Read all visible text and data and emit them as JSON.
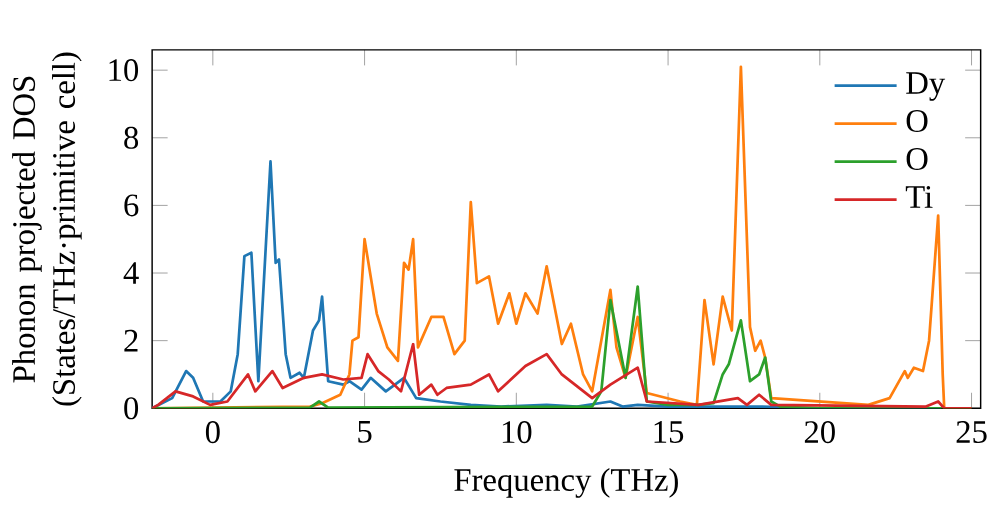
{
  "chart_data": {
    "type": "line",
    "xlabel": "Frequency (THz)",
    "ylabel": "Phonon projected DOS (States/THz·primitive cell)",
    "xlim": [
      -2,
      25.3
    ],
    "ylim": [
      0,
      10.6
    ],
    "xticks": [
      0,
      5,
      10,
      15,
      20,
      25
    ],
    "yticks": [
      0,
      2,
      4,
      6,
      8,
      10
    ],
    "legend": "top right",
    "grid": false,
    "marker": "none",
    "line_style": "solid",
    "series": [
      {
        "name": "Dy",
        "color": "#1f77b4",
        "x": [
          -2,
          -1.34,
          -0.88,
          -0.65,
          -0.32,
          0.25,
          0.59,
          0.82,
          1.04,
          1.27,
          1.5,
          1.9,
          2.07,
          2.18,
          2.4,
          2.56,
          2.86,
          3.0,
          3.3,
          3.5,
          3.6,
          3.8,
          4.3,
          4.5,
          4.9,
          5.2,
          5.7,
          6.3,
          6.7,
          7.5,
          8.5,
          9.5,
          11,
          12,
          13.1,
          13.5,
          14,
          15,
          17,
          18,
          20,
          24
        ],
        "values": [
          0,
          0.3,
          1.1,
          0.9,
          0.2,
          0.2,
          0.5,
          1.6,
          4.5,
          4.6,
          0.8,
          7.3,
          4.3,
          4.4,
          1.6,
          0.9,
          1.05,
          0.9,
          2.3,
          2.6,
          3.3,
          0.8,
          0.7,
          0.8,
          0.55,
          0.9,
          0.5,
          0.9,
          0.3,
          0.2,
          0.1,
          0.05,
          0.1,
          0.05,
          0.2,
          0.05,
          0.1,
          0.05,
          0.05,
          0.05,
          0,
          0
        ]
      },
      {
        "name": "O",
        "color": "#ff7f0e",
        "x": [
          -2,
          3.2,
          3.6,
          4.2,
          4.5,
          4.6,
          4.8,
          5.0,
          5.4,
          5.75,
          6.1,
          6.3,
          6.45,
          6.6,
          6.76,
          7.2,
          7.6,
          7.96,
          8.3,
          8.5,
          8.7,
          9.1,
          9.4,
          9.77,
          10.0,
          10.3,
          10.7,
          11.0,
          11.5,
          11.8,
          12.2,
          12.5,
          13.1,
          13.3,
          13.6,
          14.0,
          14.3,
          15.4,
          15.95,
          16.2,
          16.5,
          16.8,
          17.1,
          17.4,
          17.7,
          17.87,
          18.05,
          18.2,
          18.4,
          21.6,
          22.3,
          22.8,
          22.9,
          23.1,
          23.4,
          23.6,
          23.9,
          24.05,
          24.1,
          25
        ],
        "values": [
          0,
          0.05,
          0.15,
          0.4,
          1.0,
          2.0,
          2.1,
          5.0,
          2.8,
          1.8,
          1.4,
          4.3,
          4.1,
          5.0,
          1.8,
          2.7,
          2.7,
          1.6,
          2.0,
          6.1,
          3.7,
          3.9,
          2.5,
          3.4,
          2.5,
          3.4,
          2.8,
          4.2,
          1.9,
          2.5,
          1.0,
          0.5,
          3.5,
          1.8,
          0.9,
          2.7,
          0.45,
          0.2,
          0.1,
          3.2,
          1.3,
          3.3,
          2.3,
          10.1,
          2.4,
          1.7,
          2.0,
          1.5,
          0.3,
          0.1,
          0.3,
          1.1,
          0.9,
          1.2,
          1.1,
          2.0,
          5.7,
          1.0,
          0,
          0
        ]
      },
      {
        "name": "O",
        "color": "#2ca02c",
        "x": [
          -2,
          3.2,
          3.5,
          3.8,
          12.5,
          12.8,
          13.1,
          13.6,
          14.0,
          14.3,
          15,
          16,
          16.5,
          16.8,
          17.0,
          17.4,
          17.7,
          18.0,
          18.2,
          18.4,
          18.7,
          20,
          25
        ],
        "values": [
          0,
          0.02,
          0.2,
          0.02,
          0.05,
          0.5,
          3.2,
          0.9,
          3.6,
          0.2,
          0.1,
          0.1,
          0.15,
          1.0,
          1.3,
          2.6,
          0.8,
          1.0,
          1.5,
          0.2,
          0.05,
          0,
          0
        ]
      },
      {
        "name": "Ti",
        "color": "#d62728",
        "x": [
          -2,
          -1.8,
          -1.23,
          -0.65,
          -0.09,
          0.48,
          0.82,
          1.16,
          1.4,
          1.96,
          2.3,
          3.0,
          3.6,
          4.3,
          4.9,
          5.1,
          5.45,
          5.8,
          6.2,
          6.6,
          6.8,
          7.2,
          7.4,
          7.7,
          8.5,
          9.1,
          9.4,
          10.3,
          11.0,
          11.5,
          12.5,
          13.1,
          14.0,
          14.3,
          16,
          17.3,
          17.6,
          18.0,
          18.4,
          23.5,
          23.9,
          24.1,
          25
        ],
        "values": [
          0,
          0.1,
          0.5,
          0.35,
          0.1,
          0.2,
          0.6,
          1.0,
          0.5,
          1.1,
          0.6,
          0.9,
          1.0,
          0.85,
          0.9,
          1.6,
          1.1,
          0.85,
          0.5,
          1.9,
          0.4,
          0.7,
          0.4,
          0.6,
          0.7,
          1.0,
          0.5,
          1.25,
          1.6,
          1.0,
          0.3,
          0.7,
          1.2,
          0.2,
          0.1,
          0.3,
          0.1,
          0.4,
          0.1,
          0.05,
          0.2,
          0,
          0
        ]
      }
    ]
  }
}
